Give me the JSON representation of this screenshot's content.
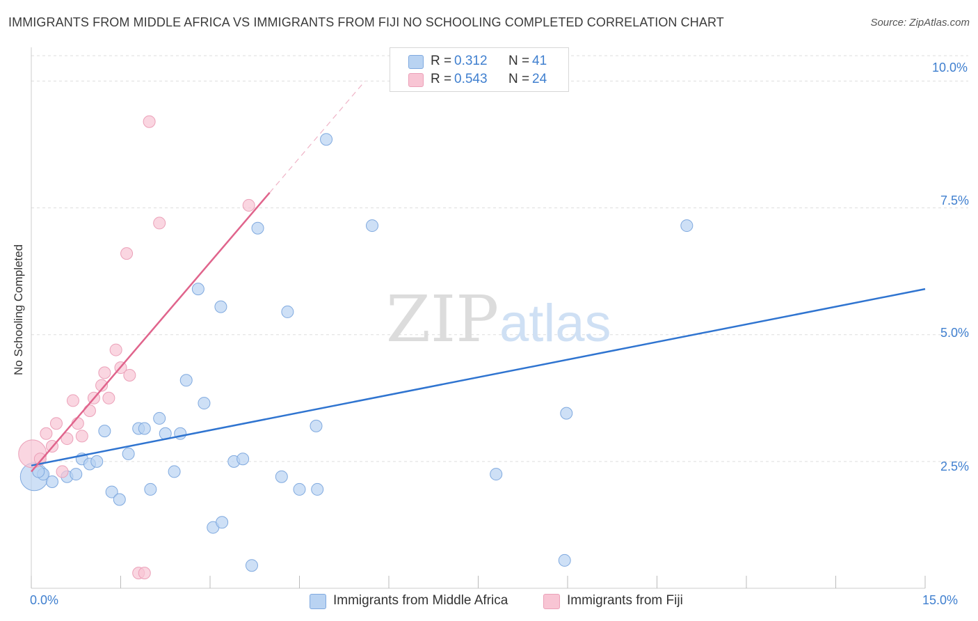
{
  "title": "IMMIGRANTS FROM MIDDLE AFRICA VS IMMIGRANTS FROM FIJI NO SCHOOLING COMPLETED CORRELATION CHART",
  "source": "Source: ZipAtlas.com",
  "watermark": {
    "zip": "ZIP",
    "atlas": "atlas"
  },
  "colors": {
    "blue_fill": "#b9d3f2",
    "blue_stroke": "#7fa9df",
    "blue_line": "#2f74d0",
    "pink_fill": "#f8c5d4",
    "pink_stroke": "#eba0b8",
    "pink_line": "#e0648c",
    "grid": "#dddddd",
    "tick_text": "#3f7fcf"
  },
  "legend_top": [
    {
      "r_label": "R =",
      "r_value": "0.312",
      "n_label": "N =",
      "n_value": "41"
    },
    {
      "r_label": "R =",
      "r_value": "0.543",
      "n_label": "N =",
      "n_value": "24"
    }
  ],
  "chart_data": {
    "type": "scatter",
    "title": "IMMIGRANTS FROM MIDDLE AFRICA VS IMMIGRANTS FROM FIJI NO SCHOOLING COMPLETED CORRELATION CHART",
    "xlabel": "",
    "ylabel": "No Schooling Completed",
    "xlim": [
      0,
      15
    ],
    "ylim": [
      0,
      10.5
    ],
    "x_tick_labels": [
      "0.0%",
      "15.0%"
    ],
    "y_ticks": [
      2.5,
      5.0,
      7.5,
      10.0
    ],
    "y_tick_labels": [
      "2.5%",
      "5.0%",
      "7.5%",
      "10.0%"
    ],
    "legend_position": "bottom",
    "series": [
      {
        "name": "Immigrants from Middle Africa",
        "color": "blue",
        "r": 0.312,
        "n": 41,
        "trend": {
          "x0": 0.0,
          "y0": 2.42,
          "x1": 15.0,
          "y1": 5.9
        },
        "points": [
          {
            "x": 0.05,
            "y": 2.2,
            "big": true
          },
          {
            "x": 0.2,
            "y": 2.25
          },
          {
            "x": 0.35,
            "y": 2.1
          },
          {
            "x": 0.6,
            "y": 2.2
          },
          {
            "x": 0.75,
            "y": 2.25
          },
          {
            "x": 0.85,
            "y": 2.55
          },
          {
            "x": 0.98,
            "y": 2.45
          },
          {
            "x": 1.1,
            "y": 2.5
          },
          {
            "x": 1.23,
            "y": 3.1
          },
          {
            "x": 1.35,
            "y": 1.9
          },
          {
            "x": 1.48,
            "y": 1.75
          },
          {
            "x": 1.63,
            "y": 2.65
          },
          {
            "x": 1.8,
            "y": 3.15
          },
          {
            "x": 1.9,
            "y": 3.15
          },
          {
            "x": 2.0,
            "y": 1.95
          },
          {
            "x": 2.15,
            "y": 3.35
          },
          {
            "x": 2.25,
            "y": 3.05
          },
          {
            "x": 2.4,
            "y": 2.3
          },
          {
            "x": 2.5,
            "y": 3.05
          },
          {
            "x": 2.6,
            "y": 4.1
          },
          {
            "x": 2.8,
            "y": 5.9
          },
          {
            "x": 2.9,
            "y": 3.65
          },
          {
            "x": 3.05,
            "y": 1.2
          },
          {
            "x": 3.2,
            "y": 1.3
          },
          {
            "x": 3.18,
            "y": 5.55
          },
          {
            "x": 3.4,
            "y": 2.5
          },
          {
            "x": 3.55,
            "y": 2.55
          },
          {
            "x": 3.7,
            "y": 0.45
          },
          {
            "x": 3.8,
            "y": 7.1
          },
          {
            "x": 4.2,
            "y": 2.2
          },
          {
            "x": 4.3,
            "y": 5.45
          },
          {
            "x": 4.5,
            "y": 1.95
          },
          {
            "x": 4.8,
            "y": 1.95
          },
          {
            "x": 4.78,
            "y": 3.2
          },
          {
            "x": 4.95,
            "y": 8.85
          },
          {
            "x": 5.72,
            "y": 7.15
          },
          {
            "x": 7.8,
            "y": 2.25
          },
          {
            "x": 8.95,
            "y": 0.55
          },
          {
            "x": 8.98,
            "y": 3.45
          },
          {
            "x": 11.0,
            "y": 7.15
          },
          {
            "x": 0.12,
            "y": 2.3
          }
        ]
      },
      {
        "name": "Immigrants from Fiji",
        "color": "pink",
        "r": 0.543,
        "n": 24,
        "trend": {
          "x0": 0.0,
          "y0": 2.3,
          "x1": 4.0,
          "y1": 7.8,
          "dashed_to_x": 5.6,
          "dashed_to_y": 10.0
        },
        "points": [
          {
            "x": 0.02,
            "y": 2.65,
            "big": true
          },
          {
            "x": 0.15,
            "y": 2.55
          },
          {
            "x": 0.25,
            "y": 3.05
          },
          {
            "x": 0.35,
            "y": 2.8
          },
          {
            "x": 0.42,
            "y": 3.25
          },
          {
            "x": 0.52,
            "y": 2.3
          },
          {
            "x": 0.6,
            "y": 2.95
          },
          {
            "x": 0.7,
            "y": 3.7
          },
          {
            "x": 0.78,
            "y": 3.25
          },
          {
            "x": 0.85,
            "y": 3.0
          },
          {
            "x": 0.98,
            "y": 3.5
          },
          {
            "x": 1.05,
            "y": 3.75
          },
          {
            "x": 1.18,
            "y": 4.0
          },
          {
            "x": 1.23,
            "y": 4.25
          },
          {
            "x": 1.3,
            "y": 3.75
          },
          {
            "x": 1.42,
            "y": 4.7
          },
          {
            "x": 1.5,
            "y": 4.35
          },
          {
            "x": 1.6,
            "y": 6.6
          },
          {
            "x": 1.65,
            "y": 4.2
          },
          {
            "x": 1.8,
            "y": 0.3
          },
          {
            "x": 1.9,
            "y": 0.3
          },
          {
            "x": 1.98,
            "y": 9.2
          },
          {
            "x": 2.15,
            "y": 7.2
          },
          {
            "x": 3.65,
            "y": 7.55
          }
        ]
      }
    ]
  }
}
